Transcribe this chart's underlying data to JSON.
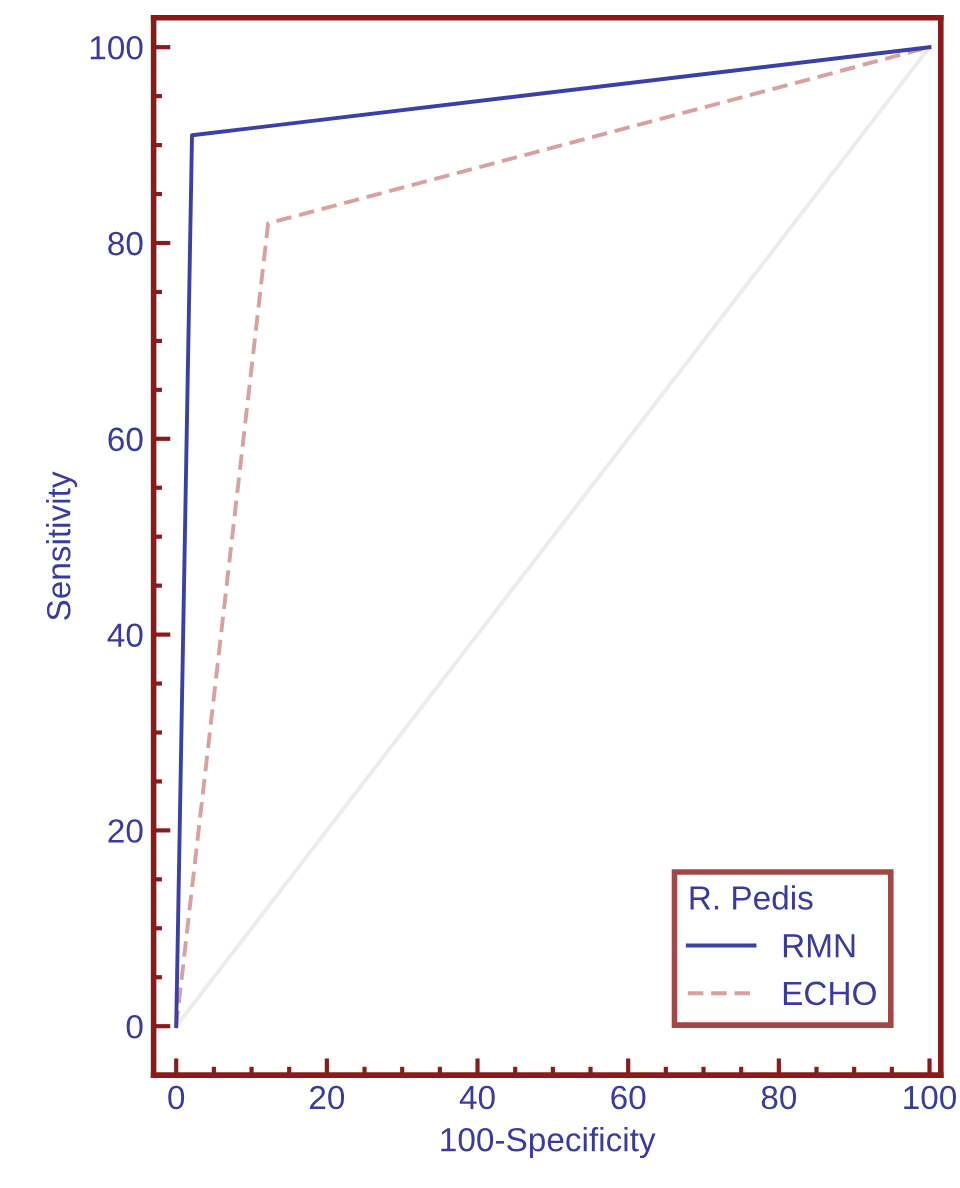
{
  "chart_data": {
    "type": "line",
    "xlabel": "100-Specificity",
    "ylabel": "Sensitivity",
    "legend_title": "R. Pedis",
    "legend": "bottom right",
    "grid": false,
    "marker": "none",
    "xlim": [
      -3,
      101.5
    ],
    "ylim": [
      -5,
      103
    ],
    "xticks": [
      0,
      {
        "value": 5,
        "label": null
      },
      {
        "value": 10,
        "label": null
      },
      {
        "value": 15,
        "label": null
      },
      20,
      {
        "value": 25,
        "label": null
      },
      {
        "value": 30,
        "label": null
      },
      {
        "value": 35,
        "label": null
      },
      40,
      {
        "value": 45,
        "label": null
      },
      {
        "value": 50,
        "label": null
      },
      {
        "value": 55,
        "label": null
      },
      60,
      {
        "value": 65,
        "label": null
      },
      {
        "value": 70,
        "label": null
      },
      {
        "value": 75,
        "label": null
      },
      80,
      {
        "value": 85,
        "label": null
      },
      {
        "value": 90,
        "label": null
      },
      {
        "value": 95,
        "label": null
      },
      100
    ],
    "yticks": [
      0,
      {
        "value": 5,
        "label": null
      },
      {
        "value": 10,
        "label": null
      },
      {
        "value": 15,
        "label": null
      },
      20,
      {
        "value": 25,
        "label": null
      },
      {
        "value": 30,
        "label": null
      },
      {
        "value": 35,
        "label": null
      },
      40,
      {
        "value": 45,
        "label": null
      },
      {
        "value": 50,
        "label": null
      },
      {
        "value": 55,
        "label": null
      },
      60,
      {
        "value": 65,
        "label": null
      },
      {
        "value": 70,
        "label": null
      },
      {
        "value": 75,
        "label": null
      },
      80,
      {
        "value": 85,
        "label": null
      },
      {
        "value": 90,
        "label": null
      },
      {
        "value": 95,
        "label": null
      },
      100
    ],
    "series": [
      {
        "name": "RMN",
        "color": "#3b3fa8",
        "line_style": "solid",
        "x": [
          0,
          2.1,
          100
        ],
        "values": [
          0,
          91,
          100
        ]
      },
      {
        "name": "ECHO",
        "color": "#d9a0a0",
        "line_style": "dashed",
        "x": [
          0,
          12.2,
          100
        ],
        "values": [
          0,
          82,
          100
        ]
      },
      {
        "color": "#ececec",
        "line_style": "solid",
        "x": [
          0,
          100
        ],
        "values": [
          0,
          100
        ]
      }
    ]
  }
}
